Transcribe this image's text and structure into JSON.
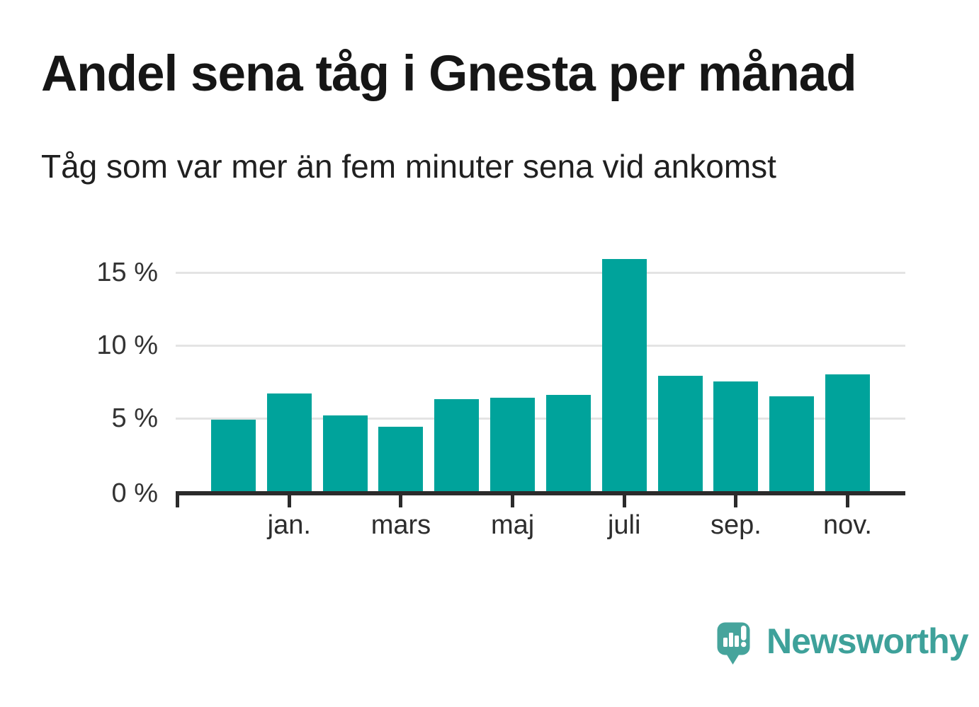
{
  "chart_data": {
    "type": "bar",
    "title": "Andel sena tåg i Gnesta per månad",
    "subtitle": "Tåg som var mer än fem minuter sena vid ankomst",
    "unit": "%",
    "bar_color": "#00a39b",
    "ylim": [
      0,
      17.5
    ],
    "grid": "horizontal",
    "legend": "none",
    "y_ticks": [
      {
        "value": 0,
        "label": "0 %"
      },
      {
        "value": 5,
        "label": "5 %"
      },
      {
        "value": 10,
        "label": "10 %"
      },
      {
        "value": 15,
        "label": "15 %"
      }
    ],
    "x_tick_labels": [
      "jan.",
      "mars",
      "maj",
      "juli",
      "sep.",
      "nov."
    ],
    "bars": [
      {
        "label": "",
        "value": 4.9
      },
      {
        "label": "jan.",
        "value": 6.7
      },
      {
        "label": "",
        "value": 5.2
      },
      {
        "label": "mars",
        "value": 4.4
      },
      {
        "label": "",
        "value": 6.3
      },
      {
        "label": "maj",
        "value": 6.4
      },
      {
        "label": "",
        "value": 6.6
      },
      {
        "label": "juli",
        "value": 15.9
      },
      {
        "label": "",
        "value": 7.9
      },
      {
        "label": "sep.",
        "value": 7.5
      },
      {
        "label": "",
        "value": 6.5
      },
      {
        "label": "nov.",
        "value": 8.0
      }
    ]
  },
  "brand": {
    "name": "Newsworthy",
    "wordmark_color": "#3ea19a",
    "bubble_color": "#46a49c",
    "icon_mark_color": "#ffffff"
  }
}
